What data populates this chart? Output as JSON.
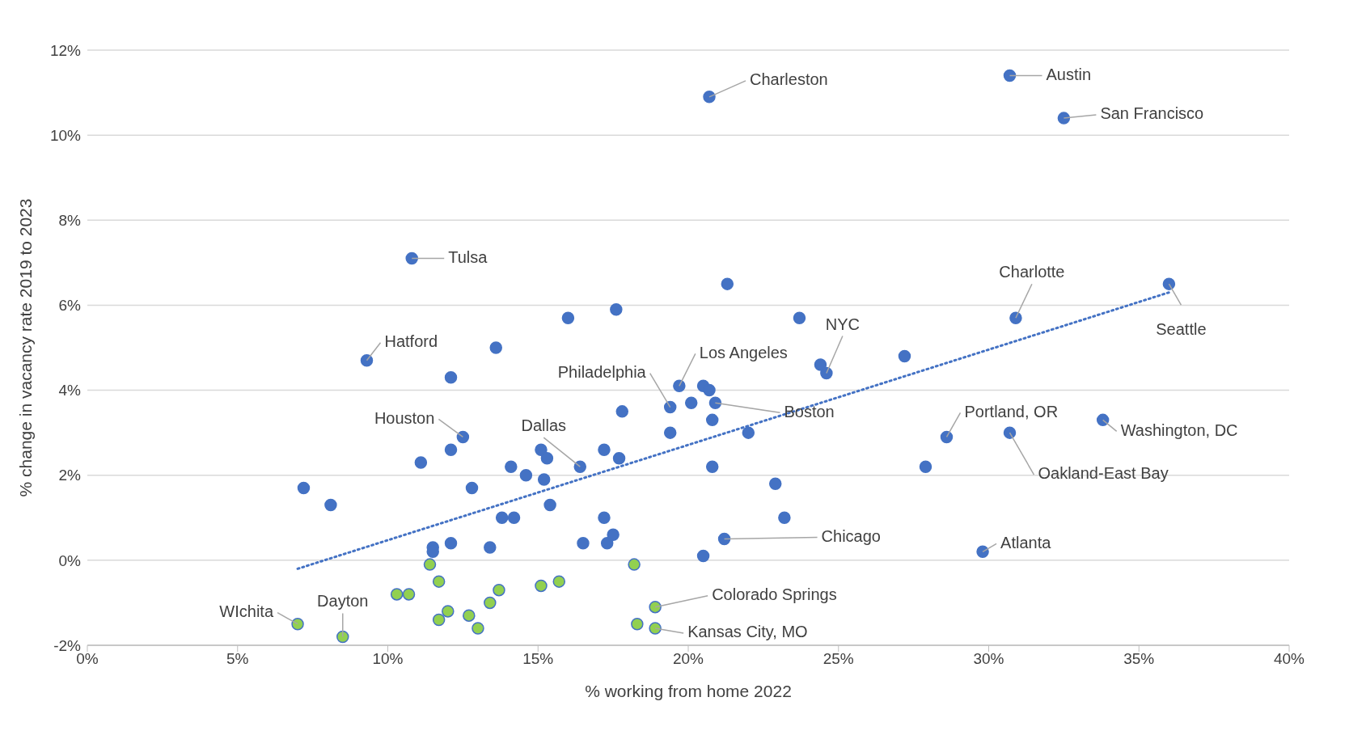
{
  "chart_data": {
    "type": "scatter",
    "xlabel": "% working from home 2022",
    "ylabel": "% change in vacancy rate 2019 to 2023",
    "xlim": [
      0,
      40
    ],
    "xticks": [
      {
        "value": 0,
        "label": "0%"
      },
      {
        "value": 5,
        "label": "5%"
      },
      {
        "value": 10,
        "label": "10%"
      },
      {
        "value": 15,
        "label": "15%"
      },
      {
        "value": 20,
        "label": "20%"
      },
      {
        "value": 25,
        "label": "25%"
      },
      {
        "value": 30,
        "label": "30%"
      },
      {
        "value": 35,
        "label": "35%"
      },
      {
        "value": 40,
        "label": "40%"
      }
    ],
    "ylim": [
      -2,
      12
    ],
    "yticks": [
      {
        "value": -2,
        "label": "-2%"
      },
      {
        "value": 0,
        "label": "0%"
      },
      {
        "value": 2,
        "label": "2%"
      },
      {
        "value": 4,
        "label": "4%"
      },
      {
        "value": 6,
        "label": "6%"
      },
      {
        "value": 8,
        "label": "8%"
      },
      {
        "value": 10,
        "label": "10%"
      },
      {
        "value": 12,
        "label": "12%"
      }
    ],
    "grid": "y",
    "legend": false,
    "marker": "circle",
    "series": [
      {
        "color": "#4472c4",
        "x": [
          20.7,
          30.7,
          32.5,
          10.8,
          21.3,
          36.0,
          16.0,
          17.6,
          23.7,
          30.9,
          9.3,
          13.6,
          12.1,
          24.4,
          24.6,
          27.2,
          19.7,
          20.5,
          20.7,
          19.4,
          20.1,
          20.9,
          17.8,
          12.5,
          19.4,
          20.8,
          22.0,
          28.6,
          30.7,
          33.8,
          11.1,
          12.1,
          15.1,
          15.3,
          17.2,
          17.7,
          16.4,
          14.1,
          14.6,
          15.2,
          20.8,
          27.9,
          7.2,
          8.1,
          12.8,
          15.4,
          22.9,
          13.8,
          14.2,
          17.2,
          23.2,
          17.5,
          12.1,
          16.5,
          17.3,
          11.5,
          11.5,
          13.4,
          21.2,
          20.5,
          29.8
        ],
        "values": [
          10.9,
          11.4,
          10.4,
          7.1,
          6.5,
          6.5,
          5.7,
          5.9,
          5.7,
          5.7,
          4.7,
          5.0,
          4.3,
          4.6,
          4.4,
          4.8,
          4.1,
          4.1,
          4.0,
          3.6,
          3.7,
          3.7,
          3.5,
          2.9,
          3.0,
          3.3,
          3.0,
          2.9,
          3.0,
          3.3,
          2.3,
          2.6,
          2.6,
          2.4,
          2.6,
          2.4,
          2.2,
          2.2,
          2.0,
          1.9,
          2.2,
          2.2,
          1.7,
          1.3,
          1.7,
          1.3,
          1.8,
          1.0,
          1.0,
          1.0,
          1.0,
          0.6,
          0.4,
          0.4,
          0.4,
          0.3,
          0.2,
          0.3,
          0.5,
          0.1,
          0.2
        ]
      },
      {
        "color": "#92d050",
        "x": [
          11.4,
          18.2,
          11.7,
          15.1,
          15.7,
          13.7,
          10.3,
          10.7,
          13.4,
          12.0,
          12.7,
          18.9,
          7.0,
          8.5,
          11.7,
          13.0,
          18.3,
          18.9
        ],
        "values": [
          -0.1,
          -0.1,
          -0.5,
          -0.6,
          -0.5,
          -0.7,
          -0.8,
          -0.8,
          -1.0,
          -1.2,
          -1.3,
          -1.1,
          -1.5,
          -1.8,
          -1.4,
          -1.6,
          -1.5,
          -1.6
        ]
      },
      {
        "type": "line",
        "color": "#4472c4",
        "line_style": "dotted",
        "marker": "none",
        "x": [
          7.0,
          36.0
        ],
        "values": [
          -0.2,
          6.3
        ]
      }
    ],
    "annotations": [
      {
        "text": "Charleston",
        "x": 20.7,
        "y": 10.9
      },
      {
        "text": "Austin",
        "x": 30.7,
        "y": 11.4
      },
      {
        "text": "San Francisco",
        "x": 32.5,
        "y": 10.4
      },
      {
        "text": "Tulsa",
        "x": 10.8,
        "y": 7.1
      },
      {
        "text": "Charlotte",
        "x": 30.9,
        "y": 5.7
      },
      {
        "text": "Seattle",
        "x": 36.0,
        "y": 6.5
      },
      {
        "text": "Hatford",
        "x": 9.3,
        "y": 4.7
      },
      {
        "text": "NYC",
        "x": 24.6,
        "y": 4.4
      },
      {
        "text": "Los Angeles",
        "x": 19.7,
        "y": 4.1
      },
      {
        "text": "Philadelphia",
        "x": 19.4,
        "y": 3.6
      },
      {
        "text": "Boston",
        "x": 20.9,
        "y": 3.7
      },
      {
        "text": "Houston",
        "x": 12.5,
        "y": 2.9
      },
      {
        "text": "Dallas",
        "x": 16.4,
        "y": 2.2
      },
      {
        "text": "Portland, OR",
        "x": 28.6,
        "y": 2.9
      },
      {
        "text": "Oakland-East Bay",
        "x": 30.7,
        "y": 3.0
      },
      {
        "text": "Washington, DC",
        "x": 33.8,
        "y": 3.3
      },
      {
        "text": "Chicago",
        "x": 21.2,
        "y": 0.5
      },
      {
        "text": "Atlanta",
        "x": 29.8,
        "y": 0.2
      },
      {
        "text": "Colorado Springs",
        "x": 18.9,
        "y": -1.1
      },
      {
        "text": "Kansas City, MO",
        "x": 18.9,
        "y": -1.6
      },
      {
        "text": "WIchita",
        "x": 7.0,
        "y": -1.5
      },
      {
        "text": "Dayton",
        "x": 8.5,
        "y": -1.8
      }
    ]
  }
}
